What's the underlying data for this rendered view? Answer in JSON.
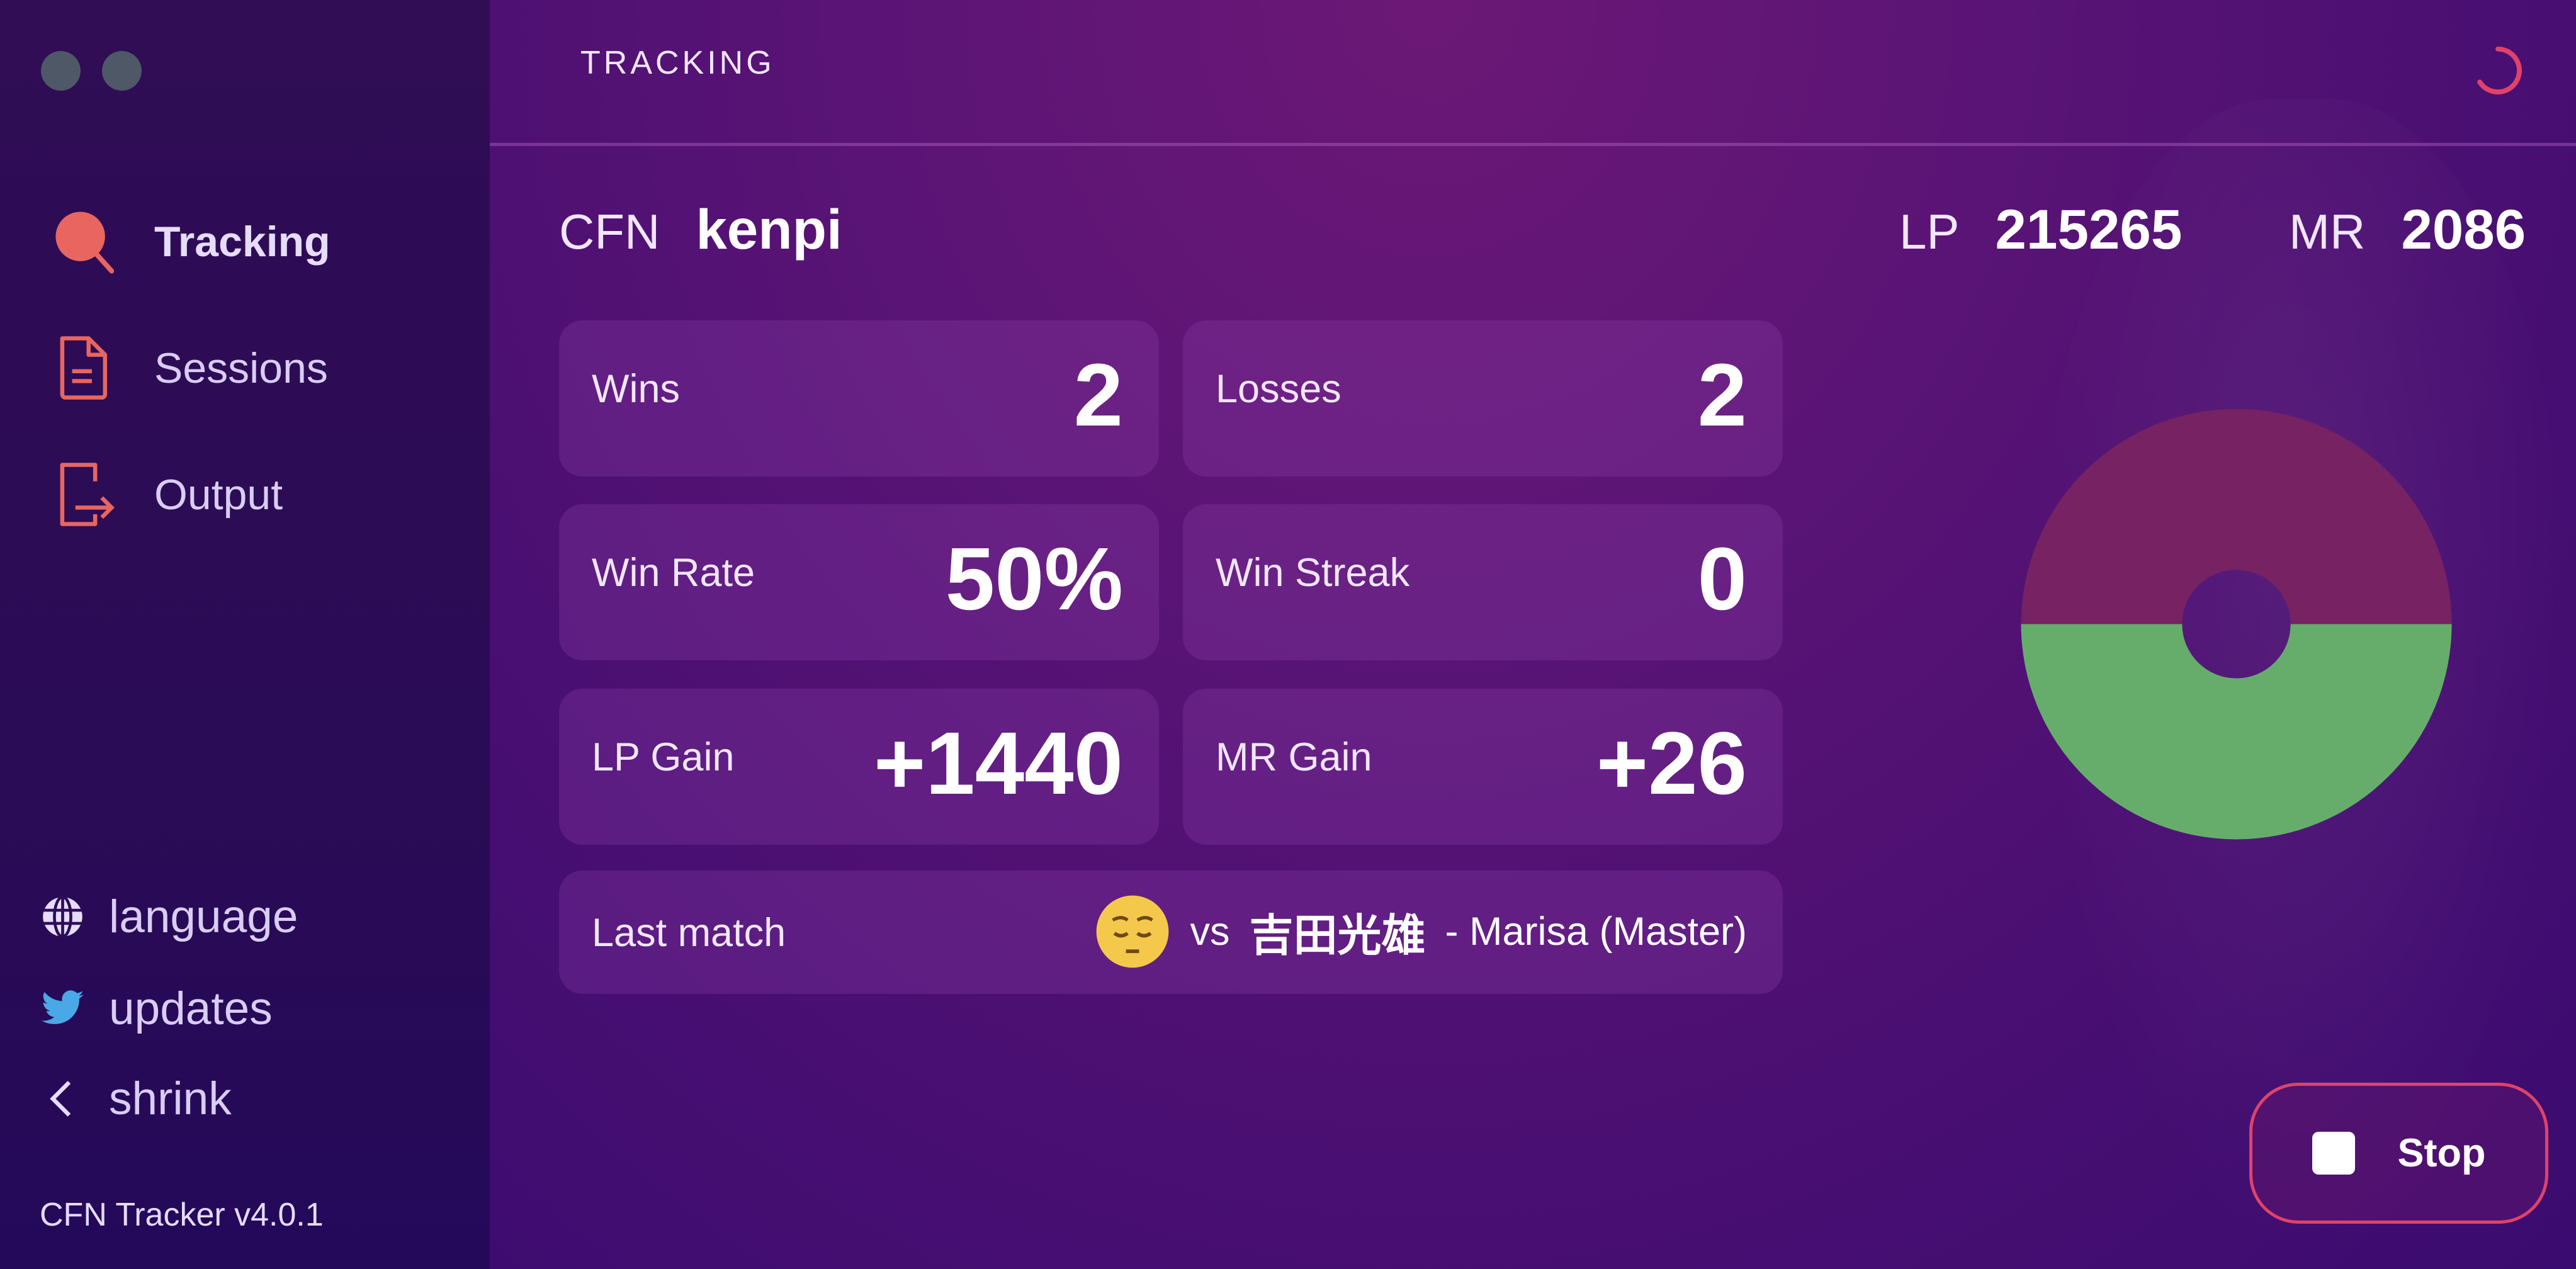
{
  "window": {
    "controls": [
      "window-dot",
      "window-dot"
    ]
  },
  "sidebar": {
    "items": [
      {
        "label": "Tracking",
        "icon": "search-icon",
        "active": true
      },
      {
        "label": "Sessions",
        "icon": "document-icon",
        "active": false
      },
      {
        "label": "Output",
        "icon": "export-icon",
        "active": false
      }
    ],
    "footer": [
      {
        "label": "language",
        "icon": "globe-icon"
      },
      {
        "label": "updates",
        "icon": "twitter-icon"
      },
      {
        "label": "shrink",
        "icon": "chevron-left-icon"
      }
    ],
    "version": "CFN Tracker v4.0.1",
    "accent": "#e8665f"
  },
  "header": {
    "title": "TRACKING",
    "spinner_color": "#e0426a"
  },
  "player": {
    "cfn_label": "CFN",
    "cfn": "kenpi",
    "lp_label": "LP",
    "lp": "215265",
    "mr_label": "MR",
    "mr": "2086"
  },
  "stats": [
    {
      "label": "Wins",
      "value": "2"
    },
    {
      "label": "Losses",
      "value": "2"
    },
    {
      "label": "Win Rate",
      "value": "50%"
    },
    {
      "label": "Win Streak",
      "value": "0"
    },
    {
      "label": "LP Gain",
      "value": "+1440"
    },
    {
      "label": "MR Gain",
      "value": "+26"
    }
  ],
  "last_match": {
    "label": "Last match",
    "result_emoji": "pensive-face",
    "vs": "vs",
    "opponent": "吉田光雄",
    "detail": "- Marisa (Master)"
  },
  "chart_data": {
    "type": "pie",
    "donut": true,
    "categories": [
      "Losses",
      "Wins"
    ],
    "values": [
      2,
      2
    ],
    "colors": [
      "#762263",
      "#66ad6c"
    ]
  },
  "stop_button": {
    "label": "Stop",
    "border_color": "#e0426a"
  }
}
